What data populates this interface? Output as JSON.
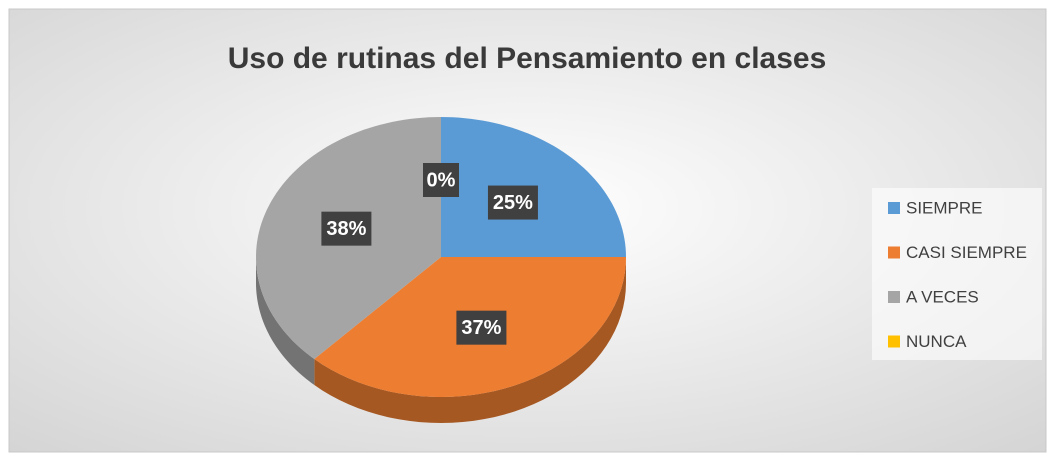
{
  "chart_data": {
    "type": "pie",
    "title": "Uso de rutinas del Pensamiento en clases",
    "categories": [
      "SIEMPRE",
      "CASI SIEMPRE",
      "A VECES",
      "NUNCA"
    ],
    "values": [
      25,
      37,
      38,
      0
    ],
    "value_labels": [
      "25%",
      "37%",
      "38%",
      "0%"
    ],
    "colors": [
      "#5b9bd5",
      "#ed7d31",
      "#a5a5a5",
      "#ffc000"
    ],
    "legend": "right"
  }
}
